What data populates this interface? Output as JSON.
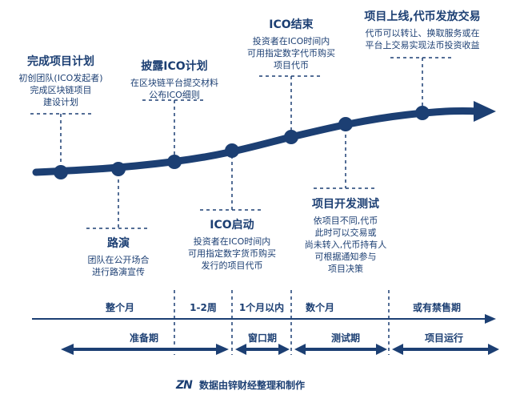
{
  "milestones": [
    {
      "title": "完成项目计划",
      "desc": [
        "初创团队(ICO发起者)",
        "完成区块链项目",
        "建设计划"
      ]
    },
    {
      "title": "路演",
      "desc": [
        "团队在公开场合",
        "进行路演宣传"
      ]
    },
    {
      "title": "披露ICO计划",
      "desc": [
        "在区块链平台提交材料",
        "公布ICO细则"
      ]
    },
    {
      "title": "ICO启动",
      "desc": [
        "投资者在ICO时间内",
        "可用指定数字货币购买",
        "发行的项目代币"
      ]
    },
    {
      "title": "ICO结束",
      "desc": [
        "投资者在ICO时间内",
        "可用指定数字代币购买",
        "项目代币"
      ]
    },
    {
      "title": "项目开发测试",
      "desc": [
        "依项目不同,代币",
        "此时可以交易或",
        "尚未转入,代币持有人",
        "可根据通知参与",
        "项目决策"
      ]
    },
    {
      "title": "项目上线,代币发放交易",
      "desc": [
        "代币可以转让、换取服务或在",
        "平台上交易实现法币投资收益"
      ]
    }
  ],
  "durations": [
    "整个月",
    "1-2周",
    "1个月以内",
    "数个月",
    "或有禁售期"
  ],
  "phases": [
    "准备期",
    "窗口期",
    "测试期",
    "项目运行"
  ],
  "footer": {
    "logo": "ZN",
    "text": "数据由锌财经整理和制作"
  },
  "colors": {
    "primary": "#1c3f73",
    "background": "#ffffff"
  }
}
